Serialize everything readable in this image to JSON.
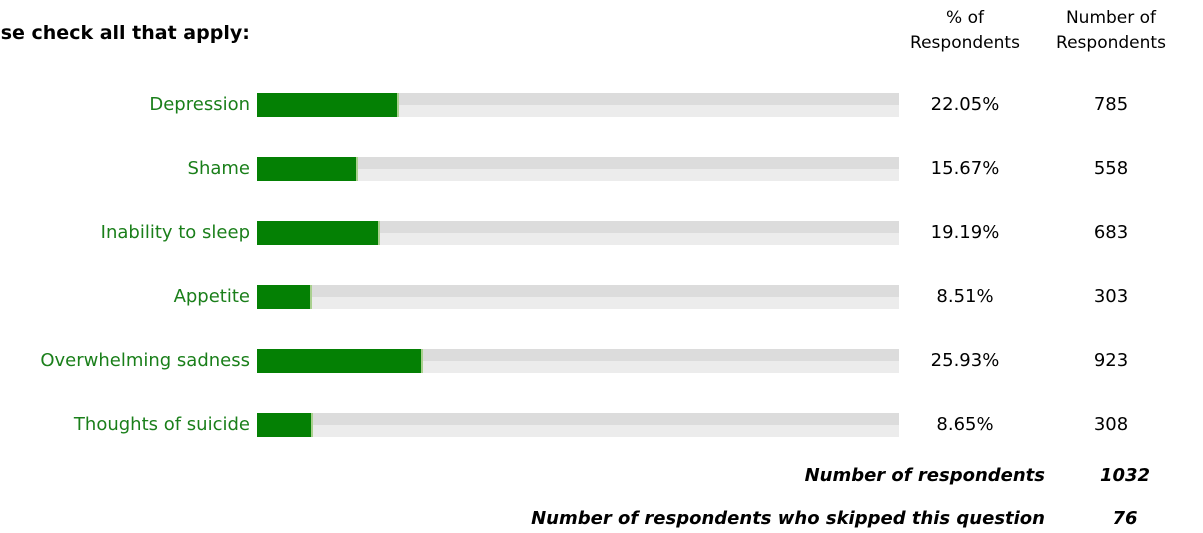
{
  "question": "ease check all that apply:",
  "headers": {
    "pct_line1": "% of",
    "pct_line2": "Respondents",
    "num_line1": "Number of",
    "num_line2": "Respondents"
  },
  "colors": {
    "label_text": "#1a7f1a",
    "bar_fill": "#048004",
    "track_light": "#ececec",
    "track_dark": "#dcdcdc"
  },
  "chart_data": {
    "type": "bar",
    "orientation": "horizontal",
    "categories": [
      "Depression",
      "Shame",
      "Inability to sleep",
      "Appetite",
      "Overwhelming sadness",
      "Thoughts of suicide"
    ],
    "series": [
      {
        "values": [
          22.05,
          15.67,
          19.19,
          8.51,
          25.93,
          8.65
        ],
        "labels": [
          "22.05%",
          "15.67%",
          "19.19%",
          "8.51%",
          "25.93%",
          "8.65%"
        ]
      }
    ],
    "counts": [
      "785",
      "558",
      "683",
      "303",
      "923",
      "308"
    ],
    "xlim": [
      0,
      100
    ],
    "grid": false
  },
  "summary": [
    {
      "label": "Number of respondents",
      "value": "1032"
    },
    {
      "label": "Number of respondents who skipped this question",
      "value": "76"
    }
  ]
}
